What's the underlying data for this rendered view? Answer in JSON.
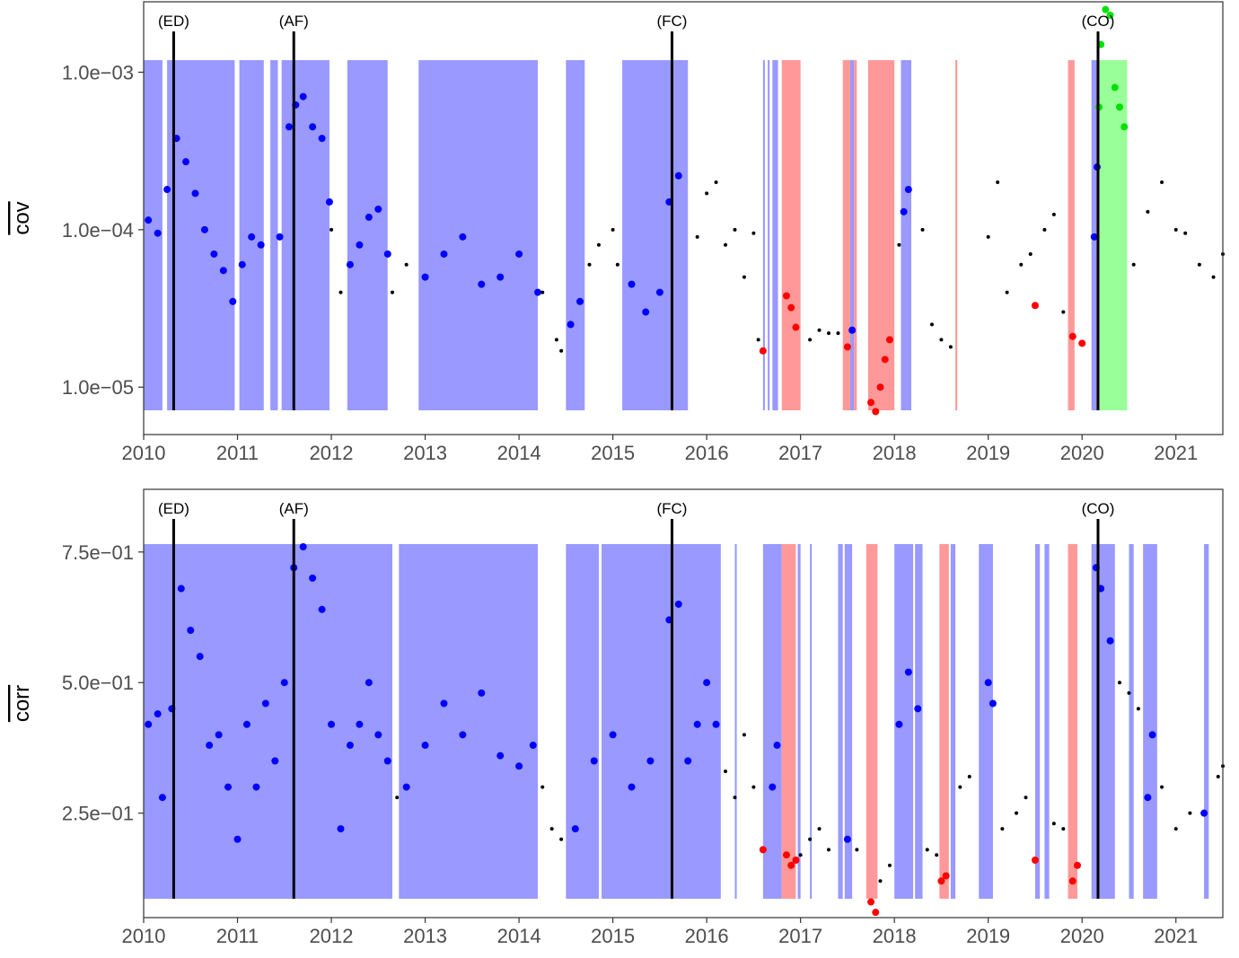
{
  "chart_data": [
    {
      "type": "scatter",
      "id": "cov",
      "ylabel": "cov",
      "ylabel_overline": true,
      "yscale": "log",
      "ylim": [
        5e-06,
        0.0028
      ],
      "xlim": [
        2010.0,
        2021.5
      ],
      "yticks": [
        {
          "value": 0.001,
          "label": "1.0e−03"
        },
        {
          "value": 0.0001,
          "label": "1.0e−04"
        },
        {
          "value": 1e-05,
          "label": "1.0e−05"
        }
      ],
      "xticks": [
        "2010",
        "2011",
        "2012",
        "2013",
        "2014",
        "2015",
        "2016",
        "2017",
        "2018",
        "2019",
        "2020",
        "2021"
      ],
      "events": [
        {
          "label": "(ED)",
          "x": 2010.32
        },
        {
          "label": "(AF)",
          "x": 2011.6
        },
        {
          "label": "(FC)",
          "x": 2015.63
        },
        {
          "label": "(CO)",
          "x": 2020.17
        }
      ],
      "regimes": [
        {
          "regime": "blue",
          "start": 2010.0,
          "end": 2010.2
        },
        {
          "regime": "blue",
          "start": 2010.25,
          "end": 2010.97
        },
        {
          "regime": "blue",
          "start": 2011.02,
          "end": 2011.28
        },
        {
          "regime": "blue",
          "start": 2011.35,
          "end": 2011.43
        },
        {
          "regime": "blue",
          "start": 2011.47,
          "end": 2011.98
        },
        {
          "regime": "blue",
          "start": 2012.17,
          "end": 2012.6
        },
        {
          "regime": "blue",
          "start": 2012.93,
          "end": 2014.2
        },
        {
          "regime": "blue",
          "start": 2014.5,
          "end": 2014.7
        },
        {
          "regime": "blue",
          "start": 2015.1,
          "end": 2015.8
        },
        {
          "regime": "blue",
          "start": 2016.6,
          "end": 2016.62
        },
        {
          "regime": "blue",
          "start": 2016.65,
          "end": 2016.67
        },
        {
          "regime": "blue",
          "start": 2016.7,
          "end": 2016.76
        },
        {
          "regime": "red",
          "start": 2016.8,
          "end": 2017.0
        },
        {
          "regime": "red",
          "start": 2017.45,
          "end": 2017.53
        },
        {
          "regime": "blue",
          "start": 2017.53,
          "end": 2017.57
        },
        {
          "regime": "red",
          "start": 2017.57,
          "end": 2017.6
        },
        {
          "regime": "red",
          "start": 2017.72,
          "end": 2018.0
        },
        {
          "regime": "blue",
          "start": 2018.07,
          "end": 2018.18
        },
        {
          "regime": "red",
          "start": 2018.65,
          "end": 2018.67
        },
        {
          "regime": "red",
          "start": 2019.85,
          "end": 2019.92
        },
        {
          "regime": "blue",
          "start": 2020.1,
          "end": 2020.17
        },
        {
          "regime": "green",
          "start": 2020.17,
          "end": 2020.48
        }
      ],
      "series": [
        {
          "regime": "blue",
          "x": [
            2010.05,
            2010.15,
            2010.25,
            2010.35,
            2010.45,
            2010.55,
            2010.65,
            2010.75,
            2010.85,
            2010.95,
            2011.05,
            2011.15,
            2011.25,
            2011.45,
            2011.55,
            2011.62,
            2011.7,
            2011.8,
            2011.9,
            2011.98,
            2012.2,
            2012.3,
            2012.4,
            2012.5,
            2012.6,
            2013.0,
            2013.2,
            2013.4,
            2013.6,
            2013.8,
            2014.0,
            2014.2,
            2014.55,
            2014.65,
            2015.2,
            2015.35,
            2015.5,
            2015.6,
            2015.7,
            2017.55,
            2018.1,
            2018.15,
            2020.13,
            2020.16
          ],
          "y": [
            0.000115,
            9.5e-05,
            0.00018,
            0.00038,
            0.00027,
            0.00017,
            0.0001,
            7e-05,
            5.5e-05,
            3.5e-05,
            6e-05,
            9e-05,
            8e-05,
            9e-05,
            0.00045,
            0.00062,
            0.0007,
            0.00045,
            0.00038,
            0.00015,
            6e-05,
            8e-05,
            0.00012,
            0.000135,
            7e-05,
            5e-05,
            7e-05,
            9e-05,
            4.5e-05,
            5e-05,
            7e-05,
            4e-05,
            2.5e-05,
            3.5e-05,
            4.5e-05,
            3e-05,
            4e-05,
            0.00015,
            0.00022,
            2.3e-05,
            0.00013,
            0.00018,
            9e-05,
            0.00025
          ]
        },
        {
          "regime": "red",
          "x": [
            2016.6,
            2016.85,
            2016.9,
            2016.95,
            2017.5,
            2017.75,
            2017.8,
            2017.85,
            2017.9,
            2017.95,
            2019.5,
            2019.9,
            2020.0
          ],
          "y": [
            1.7e-05,
            3.8e-05,
            3.2e-05,
            2.4e-05,
            1.8e-05,
            8e-06,
            7e-06,
            1e-05,
            1.5e-05,
            2e-05,
            3.3e-05,
            2.1e-05,
            1.9e-05
          ]
        },
        {
          "regime": "green",
          "x": [
            2020.18,
            2020.2,
            2020.25,
            2020.3,
            2020.35,
            2020.4,
            2020.45
          ],
          "y": [
            0.0006,
            0.0015,
            0.0025,
            0.0023,
            0.0008,
            0.0006,
            0.00045
          ]
        },
        {
          "regime": "other",
          "x": [
            2012.0,
            2012.1,
            2012.65,
            2012.8,
            2014.25,
            2014.4,
            2014.45,
            2014.75,
            2014.85,
            2015.0,
            2015.05,
            2015.9,
            2016.0,
            2016.1,
            2016.2,
            2016.3,
            2016.4,
            2016.5,
            2016.55,
            2017.1,
            2017.2,
            2017.3,
            2017.4,
            2018.05,
            2018.3,
            2018.4,
            2018.5,
            2018.6,
            2019.0,
            2019.1,
            2019.2,
            2019.35,
            2019.45,
            2019.6,
            2019.7,
            2019.8,
            2020.55,
            2020.7,
            2020.85,
            2021.0,
            2021.1,
            2021.25,
            2021.4,
            2021.5
          ],
          "y": [
            0.0001,
            4e-05,
            4e-05,
            6e-05,
            4e-05,
            2e-05,
            1.7e-05,
            6e-05,
            8e-05,
            0.0001,
            6e-05,
            9e-05,
            0.00017,
            0.0002,
            8e-05,
            0.0001,
            5e-05,
            9.5e-05,
            2e-05,
            2e-05,
            2.3e-05,
            2.2e-05,
            2.2e-05,
            8e-05,
            0.0001,
            2.5e-05,
            2e-05,
            1.8e-05,
            9e-05,
            0.0002,
            4e-05,
            6e-05,
            7e-05,
            0.0001,
            0.000125,
            3e-05,
            6e-05,
            0.00013,
            0.0002,
            0.0001,
            9.5e-05,
            6e-05,
            5e-05,
            7e-05
          ]
        }
      ]
    },
    {
      "type": "scatter",
      "id": "corr",
      "ylabel": "corr",
      "ylabel_overline": true,
      "yscale": "linear",
      "ylim": [
        0.05,
        0.87
      ],
      "xlim": [
        2010.0,
        2021.5
      ],
      "yticks": [
        {
          "value": 0.75,
          "label": "7.5e−01"
        },
        {
          "value": 0.5,
          "label": "5.0e−01"
        },
        {
          "value": 0.25,
          "label": "2.5e−01"
        }
      ],
      "xticks": [
        "2010",
        "2011",
        "2012",
        "2013",
        "2014",
        "2015",
        "2016",
        "2017",
        "2018",
        "2019",
        "2020",
        "2021"
      ],
      "events": [
        {
          "label": "(ED)",
          "x": 2010.32
        },
        {
          "label": "(AF)",
          "x": 2011.6
        },
        {
          "label": "(FC)",
          "x": 2015.63
        },
        {
          "label": "(CO)",
          "x": 2020.17
        }
      ],
      "regimes": [
        {
          "regime": "blue",
          "start": 2010.0,
          "end": 2012.65
        },
        {
          "regime": "blue",
          "start": 2012.72,
          "end": 2014.2
        },
        {
          "regime": "blue",
          "start": 2014.5,
          "end": 2014.85
        },
        {
          "regime": "blue",
          "start": 2014.88,
          "end": 2016.15
        },
        {
          "regime": "blue",
          "start": 2016.3,
          "end": 2016.32
        },
        {
          "regime": "blue",
          "start": 2016.6,
          "end": 2016.8
        },
        {
          "regime": "red",
          "start": 2016.8,
          "end": 2016.95
        },
        {
          "regime": "blue",
          "start": 2016.97,
          "end": 2017.0
        },
        {
          "regime": "blue",
          "start": 2017.1,
          "end": 2017.12
        },
        {
          "regime": "blue",
          "start": 2017.4,
          "end": 2017.45
        },
        {
          "regime": "blue",
          "start": 2017.47,
          "end": 2017.55
        },
        {
          "regime": "red",
          "start": 2017.7,
          "end": 2017.82
        },
        {
          "regime": "blue",
          "start": 2018.0,
          "end": 2018.2
        },
        {
          "regime": "blue",
          "start": 2018.22,
          "end": 2018.3
        },
        {
          "regime": "red",
          "start": 2018.48,
          "end": 2018.58
        },
        {
          "regime": "blue",
          "start": 2018.6,
          "end": 2018.65
        },
        {
          "regime": "blue",
          "start": 2018.9,
          "end": 2019.05
        },
        {
          "regime": "blue",
          "start": 2019.5,
          "end": 2019.55
        },
        {
          "regime": "blue",
          "start": 2019.6,
          "end": 2019.65
        },
        {
          "regime": "red",
          "start": 2019.85,
          "end": 2019.95
        },
        {
          "regime": "blue",
          "start": 2020.1,
          "end": 2020.35
        },
        {
          "regime": "blue",
          "start": 2020.5,
          "end": 2020.55
        },
        {
          "regime": "blue",
          "start": 2020.65,
          "end": 2020.8
        },
        {
          "regime": "blue",
          "start": 2021.3,
          "end": 2021.35
        }
      ],
      "series": [
        {
          "regime": "blue",
          "x": [
            2010.05,
            2010.15,
            2010.2,
            2010.3,
            2010.4,
            2010.5,
            2010.6,
            2010.7,
            2010.8,
            2010.9,
            2011.0,
            2011.1,
            2011.2,
            2011.3,
            2011.4,
            2011.5,
            2011.6,
            2011.7,
            2011.8,
            2011.9,
            2012.0,
            2012.1,
            2012.2,
            2012.3,
            2012.4,
            2012.5,
            2012.6,
            2012.8,
            2013.0,
            2013.2,
            2013.4,
            2013.6,
            2013.8,
            2014.0,
            2014.15,
            2014.6,
            2014.8,
            2015.0,
            2015.2,
            2015.4,
            2015.6,
            2015.7,
            2015.8,
            2015.9,
            2016.0,
            2016.1,
            2016.7,
            2016.75,
            2017.5,
            2018.05,
            2018.15,
            2018.25,
            2019.0,
            2019.05,
            2020.15,
            2020.2,
            2020.3,
            2020.7,
            2020.75,
            2021.3
          ],
          "y": [
            0.42,
            0.44,
            0.28,
            0.45,
            0.68,
            0.6,
            0.55,
            0.38,
            0.4,
            0.3,
            0.2,
            0.42,
            0.3,
            0.46,
            0.35,
            0.5,
            0.72,
            0.76,
            0.7,
            0.64,
            0.42,
            0.22,
            0.38,
            0.42,
            0.5,
            0.4,
            0.35,
            0.3,
            0.38,
            0.46,
            0.4,
            0.48,
            0.36,
            0.34,
            0.38,
            0.22,
            0.35,
            0.4,
            0.3,
            0.35,
            0.62,
            0.65,
            0.35,
            0.42,
            0.5,
            0.42,
            0.3,
            0.38,
            0.2,
            0.42,
            0.52,
            0.45,
            0.5,
            0.46,
            0.72,
            0.68,
            0.58,
            0.28,
            0.4,
            0.25
          ]
        },
        {
          "regime": "red",
          "x": [
            2016.6,
            2016.85,
            2016.9,
            2016.95,
            2017.75,
            2017.8,
            2018.5,
            2018.55,
            2019.5,
            2019.9,
            2019.95
          ],
          "y": [
            0.18,
            0.17,
            0.15,
            0.16,
            0.08,
            0.06,
            0.12,
            0.13,
            0.16,
            0.12,
            0.15
          ]
        },
        {
          "regime": "other",
          "x": [
            2012.7,
            2014.25,
            2014.35,
            2014.45,
            2016.2,
            2016.3,
            2016.4,
            2016.5,
            2017.0,
            2017.1,
            2017.2,
            2017.3,
            2017.6,
            2017.85,
            2017.95,
            2018.35,
            2018.45,
            2018.7,
            2018.8,
            2019.15,
            2019.3,
            2019.4,
            2019.7,
            2019.8,
            2020.4,
            2020.5,
            2020.6,
            2020.85,
            2021.0,
            2021.15,
            2021.45,
            2021.5
          ],
          "y": [
            0.28,
            0.3,
            0.22,
            0.2,
            0.33,
            0.28,
            0.4,
            0.3,
            0.17,
            0.2,
            0.22,
            0.18,
            0.18,
            0.12,
            0.15,
            0.18,
            0.17,
            0.3,
            0.32,
            0.22,
            0.25,
            0.28,
            0.23,
            0.22,
            0.5,
            0.48,
            0.45,
            0.3,
            0.22,
            0.25,
            0.32,
            0.34
          ]
        }
      ]
    }
  ],
  "regime_colors": {
    "blue": "#9999ff",
    "red": "#ff9999",
    "green": "#99ff99"
  },
  "point_colors": {
    "blue": "#0000ff",
    "red": "#ff0000",
    "green": "#00e000",
    "other": "#000000"
  }
}
